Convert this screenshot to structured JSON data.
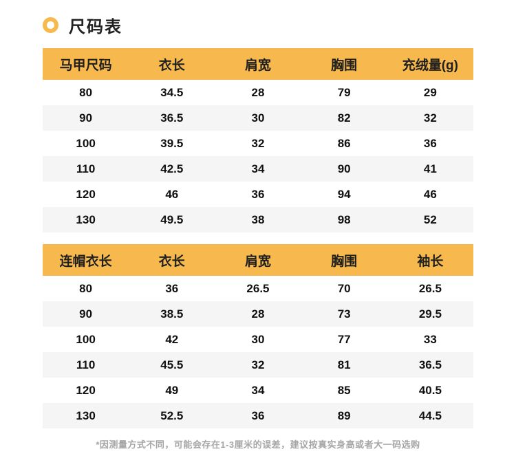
{
  "page": {
    "title": "尺码表",
    "footnote": "*因测量方式不同，可能会存在1-3厘米的误差，建议按真实身高或者大一码选购"
  },
  "colors": {
    "accent": "#F7B94E",
    "row_alt": "#F5F5F5",
    "text": "#1A1A1A",
    "footnote_text": "#A6A6A6"
  },
  "chart_data": [
    {
      "type": "table",
      "columns": [
        "马甲尺码",
        "衣长",
        "肩宽",
        "胸围",
        "充绒量(g)"
      ],
      "rows": [
        [
          "80",
          "34.5",
          "28",
          "79",
          "29"
        ],
        [
          "90",
          "36.5",
          "30",
          "82",
          "32"
        ],
        [
          "100",
          "39.5",
          "32",
          "86",
          "36"
        ],
        [
          "110",
          "42.5",
          "34",
          "90",
          "41"
        ],
        [
          "120",
          "46",
          "36",
          "94",
          "46"
        ],
        [
          "130",
          "49.5",
          "38",
          "98",
          "52"
        ]
      ]
    },
    {
      "type": "table",
      "columns": [
        "连帽衣长",
        "衣长",
        "肩宽",
        "胸围",
        "袖长"
      ],
      "rows": [
        [
          "80",
          "36",
          "26.5",
          "70",
          "26.5"
        ],
        [
          "90",
          "38.5",
          "28",
          "73",
          "29.5"
        ],
        [
          "100",
          "42",
          "30",
          "77",
          "33"
        ],
        [
          "110",
          "45.5",
          "32",
          "81",
          "36.5"
        ],
        [
          "120",
          "49",
          "34",
          "85",
          "40.5"
        ],
        [
          "130",
          "52.5",
          "36",
          "89",
          "44.5"
        ]
      ]
    }
  ]
}
